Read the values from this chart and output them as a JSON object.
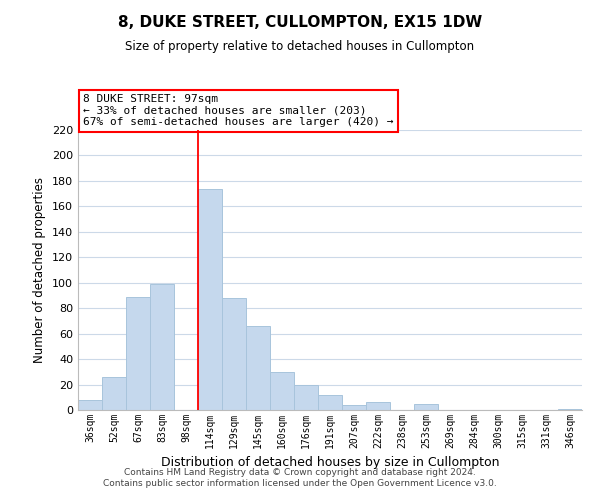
{
  "title": "8, DUKE STREET, CULLOMPTON, EX15 1DW",
  "subtitle": "Size of property relative to detached houses in Cullompton",
  "xlabel": "Distribution of detached houses by size in Cullompton",
  "ylabel": "Number of detached properties",
  "categories": [
    "36sqm",
    "52sqm",
    "67sqm",
    "83sqm",
    "98sqm",
    "114sqm",
    "129sqm",
    "145sqm",
    "160sqm",
    "176sqm",
    "191sqm",
    "207sqm",
    "222sqm",
    "238sqm",
    "253sqm",
    "269sqm",
    "284sqm",
    "300sqm",
    "315sqm",
    "331sqm",
    "346sqm"
  ],
  "values": [
    8,
    26,
    89,
    99,
    0,
    174,
    88,
    66,
    30,
    20,
    12,
    4,
    6,
    0,
    5,
    0,
    0,
    0,
    0,
    0,
    1
  ],
  "bar_color": "#c5d8ed",
  "bar_edge_color": "#a8c4dc",
  "vline_x_index": 4.5,
  "annotation_title": "8 DUKE STREET: 97sqm",
  "annotation_line1": "← 33% of detached houses are smaller (203)",
  "annotation_line2": "67% of semi-detached houses are larger (420) →",
  "ylim": [
    0,
    220
  ],
  "yticks": [
    0,
    20,
    40,
    60,
    80,
    100,
    120,
    140,
    160,
    180,
    200,
    220
  ],
  "footer1": "Contains HM Land Registry data © Crown copyright and database right 2024.",
  "footer2": "Contains public sector information licensed under the Open Government Licence v3.0.",
  "bg_color": "#ffffff",
  "grid_color": "#ccd9e8"
}
